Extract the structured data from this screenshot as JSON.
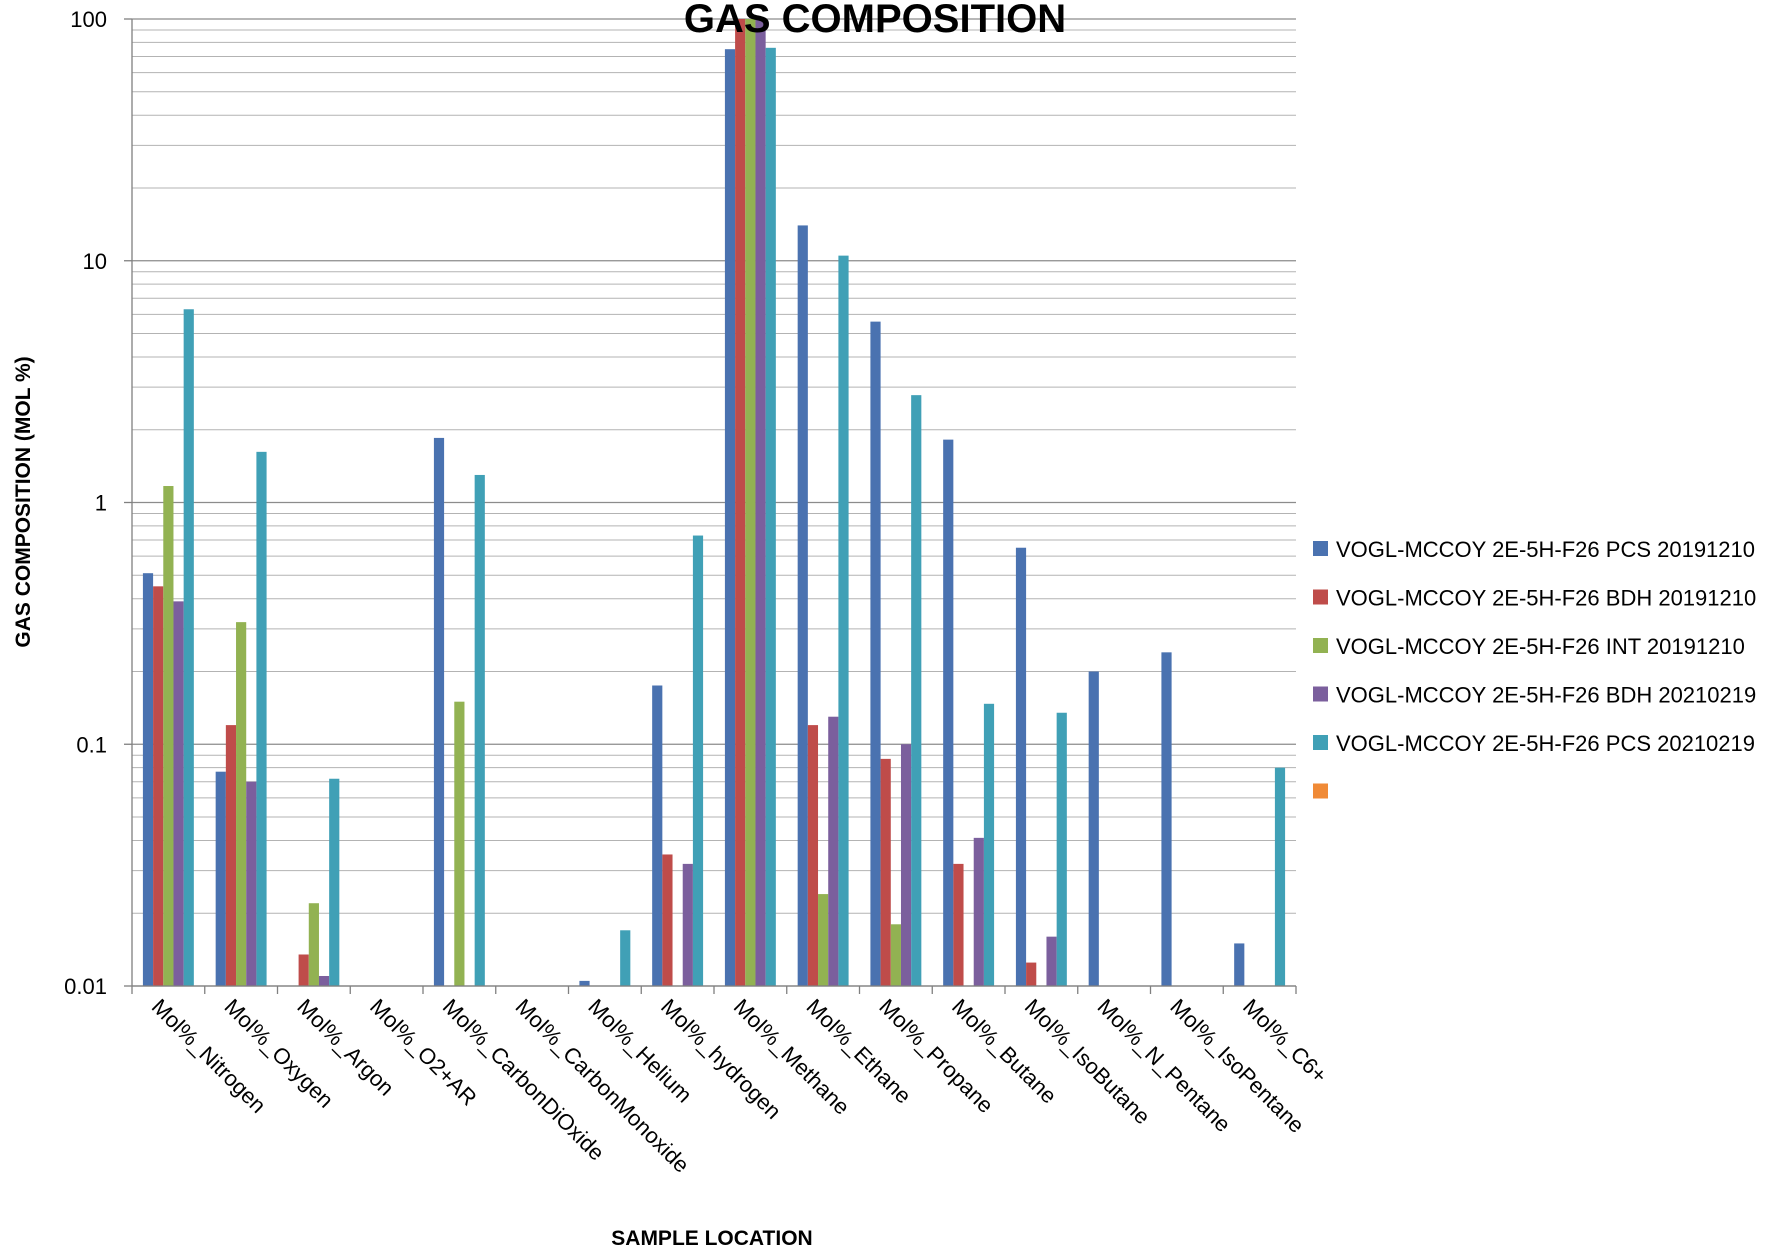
{
  "chart_data": {
    "type": "bar",
    "title": "GAS COMPOSITION",
    "xlabel": "SAMPLE LOCATION",
    "ylabel": "GAS COMPOSITION (MOL %)",
    "y_scale": "log",
    "ylim": [
      0.01,
      100
    ],
    "y_ticks": [
      "0.01",
      "0.1",
      "1",
      "10",
      "100"
    ],
    "grid": "major and minor horizontal gridlines",
    "legend_position": "right",
    "categories": [
      "Mol%_Nitrogen",
      "Mol%_Oxygen",
      "Mol%_Argon",
      "Mol%_O2+AR",
      "Mol%_CarbonDiOxide",
      "Mol%_CarbonMonoxide",
      "Mol%_Helium",
      "Mol%_hydrogen",
      "Mol%_Methane",
      "Mol%_Ethane",
      "Mol%_Propane",
      "Mol%_Butane",
      "Mol%_IsoButane",
      "Mol%_N_Pentane",
      "Mol%_IsoPentane",
      "Mol%_C6+"
    ],
    "series": [
      {
        "name": "VOGL-MCCOY 2E-5H-F26 PCS 20191210",
        "color": "#4a72b0",
        "values": [
          0.51,
          0.077,
          null,
          null,
          1.85,
          null,
          0.0105,
          0.175,
          75,
          14,
          5.6,
          1.82,
          0.65,
          0.2,
          0.24,
          0.015
        ]
      },
      {
        "name": "VOGL-MCCOY 2E-5H-F26 BDH 20191210",
        "color": "#bf4c4a",
        "values": [
          0.45,
          0.12,
          0.0135,
          null,
          null,
          null,
          null,
          0.035,
          100,
          0.12,
          0.087,
          0.032,
          0.0125,
          0.01,
          0.01,
          0.01
        ]
      },
      {
        "name": "VOGL-MCCOY 2E-5H-F26 INT 20191210",
        "color": "#92b252",
        "values": [
          1.17,
          0.32,
          0.022,
          null,
          0.15,
          null,
          null,
          null,
          100,
          0.024,
          0.018,
          0.01,
          0.01,
          null,
          null,
          null
        ]
      },
      {
        "name": "VOGL-MCCOY 2E-5H-F26 BDH 20210219",
        "color": "#7b5f9d",
        "values": [
          0.39,
          0.07,
          0.011,
          null,
          null,
          null,
          null,
          0.032,
          100,
          0.13,
          0.1,
          0.041,
          0.016,
          0.01,
          0.01,
          0.01
        ]
      },
      {
        "name": "VOGL-MCCOY 2E-5H-F26 PCS 20210219",
        "color": "#40a0b6",
        "values": [
          6.3,
          1.62,
          0.072,
          null,
          1.3,
          null,
          0.017,
          0.73,
          76,
          10.5,
          2.78,
          0.147,
          0.135,
          0.01,
          0.01,
          0.08
        ]
      },
      {
        "name": "",
        "color": "#f08a36",
        "values": [
          null,
          null,
          null,
          null,
          null,
          null,
          null,
          null,
          null,
          null,
          null,
          null,
          null,
          null,
          null,
          null
        ]
      }
    ]
  }
}
